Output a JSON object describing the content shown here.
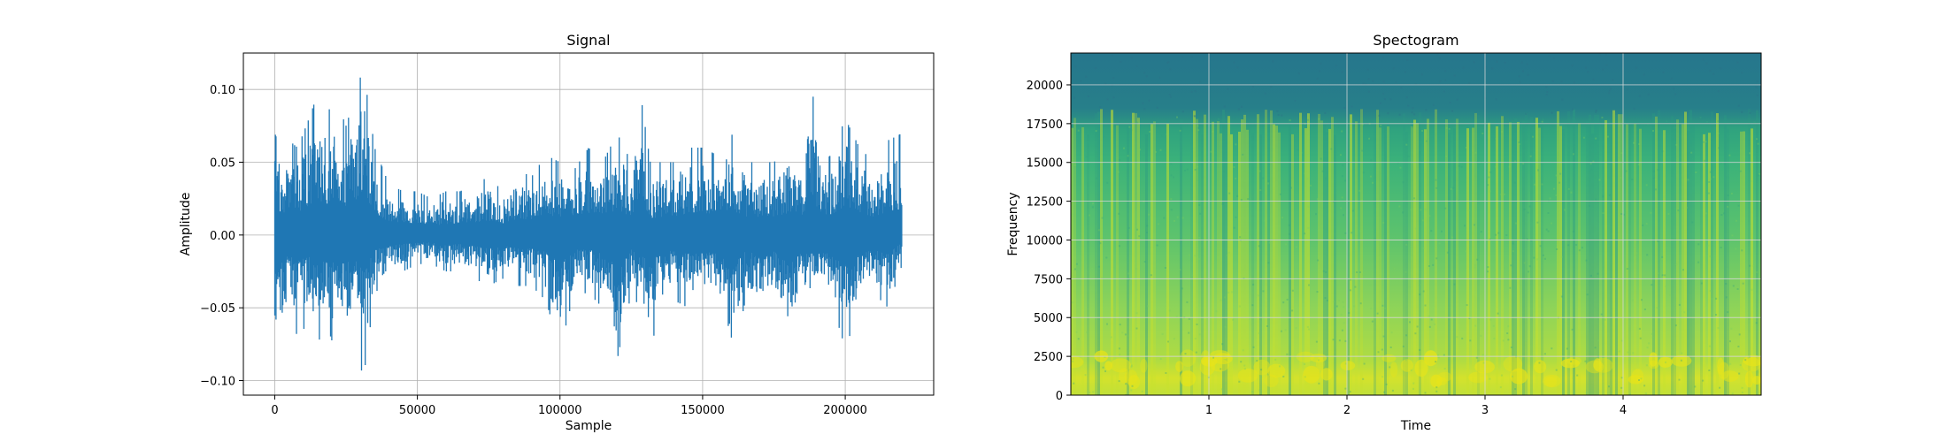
{
  "chart_data": [
    {
      "type": "line",
      "title": "Signal",
      "xlabel": "Sample",
      "ylabel": "Amplitude",
      "xlim": [
        -11000,
        231000
      ],
      "ylim": [
        -0.11,
        0.125
      ],
      "xticks": [
        0,
        50000,
        100000,
        150000,
        200000
      ],
      "xtick_labels": [
        "0",
        "50000",
        "100000",
        "150000",
        "200000"
      ],
      "yticks": [
        -0.1,
        -0.05,
        0.0,
        0.05,
        0.1
      ],
      "ytick_labels": [
        "−0.10",
        "−0.05",
        "0.00",
        "0.05",
        "0.10"
      ],
      "grid": true,
      "series": [
        {
          "color": "#1f77b4",
          "envelope_x": [
            0,
            2000,
            5000,
            8000,
            12000,
            15000,
            18000,
            22000,
            25000,
            28000,
            31000,
            35000,
            40000,
            45000,
            50000,
            55000,
            60000,
            65000,
            70000,
            75000,
            80000,
            85000,
            90000,
            95000,
            100000,
            105000,
            110000,
            115000,
            120000,
            125000,
            128000,
            132000,
            135000,
            140000,
            145000,
            150000,
            155000,
            160000,
            165000,
            170000,
            175000,
            180000,
            185000,
            188000,
            192000,
            195000,
            200000,
            205000,
            210000,
            215000,
            220000
          ],
          "envelope_max": [
            0.07,
            0.06,
            0.065,
            0.06,
            0.08,
            0.097,
            0.085,
            0.09,
            0.075,
            0.095,
            0.115,
            0.06,
            0.035,
            0.03,
            0.03,
            0.025,
            0.03,
            0.03,
            0.035,
            0.04,
            0.03,
            0.045,
            0.04,
            0.055,
            0.05,
            0.045,
            0.06,
            0.05,
            0.07,
            0.05,
            0.1,
            0.045,
            0.05,
            0.05,
            0.06,
            0.06,
            0.055,
            0.07,
            0.05,
            0.05,
            0.05,
            0.06,
            0.055,
            0.105,
            0.05,
            0.055,
            0.08,
            0.06,
            0.05,
            0.065,
            0.07
          ],
          "envelope_min": [
            -0.075,
            -0.07,
            -0.055,
            -0.07,
            -0.06,
            -0.075,
            -0.06,
            -0.085,
            -0.07,
            -0.065,
            -0.1,
            -0.04,
            -0.03,
            -0.025,
            -0.02,
            -0.02,
            -0.025,
            -0.025,
            -0.03,
            -0.035,
            -0.03,
            -0.035,
            -0.035,
            -0.045,
            -0.078,
            -0.04,
            -0.04,
            -0.05,
            -0.086,
            -0.04,
            -0.05,
            -0.082,
            -0.04,
            -0.045,
            -0.05,
            -0.05,
            -0.045,
            -0.09,
            -0.045,
            -0.05,
            -0.045,
            -0.078,
            -0.045,
            -0.05,
            -0.05,
            -0.045,
            -0.078,
            -0.05,
            -0.04,
            -0.05,
            -0.02
          ]
        }
      ]
    },
    {
      "type": "heatmap",
      "title": "Spectogram",
      "xlabel": "Time",
      "ylabel": "Frequency",
      "xlim": [
        0,
        5
      ],
      "ylim": [
        0,
        22050
      ],
      "xticks": [
        1,
        2,
        3,
        4
      ],
      "xtick_labels": [
        "1",
        "2",
        "3",
        "4"
      ],
      "yticks": [
        0,
        2500,
        5000,
        7500,
        10000,
        12500,
        15000,
        17500,
        20000
      ],
      "ytick_labels": [
        "0",
        "2500",
        "5000",
        "7500",
        "10000",
        "12500",
        "15000",
        "17500",
        "20000"
      ],
      "grid": true,
      "colormap": "viridis",
      "cutoff_frequency": 18000,
      "intensity_profile": [
        {
          "freq": 0,
          "level": 0.9
        },
        {
          "freq": 1500,
          "level": 0.95
        },
        {
          "freq": 5000,
          "level": 0.82
        },
        {
          "freq": 10000,
          "level": 0.7
        },
        {
          "freq": 15000,
          "level": 0.6
        },
        {
          "freq": 17500,
          "level": 0.55
        },
        {
          "freq": 18500,
          "level": 0.42
        },
        {
          "freq": 22050,
          "level": 0.38
        }
      ]
    }
  ]
}
